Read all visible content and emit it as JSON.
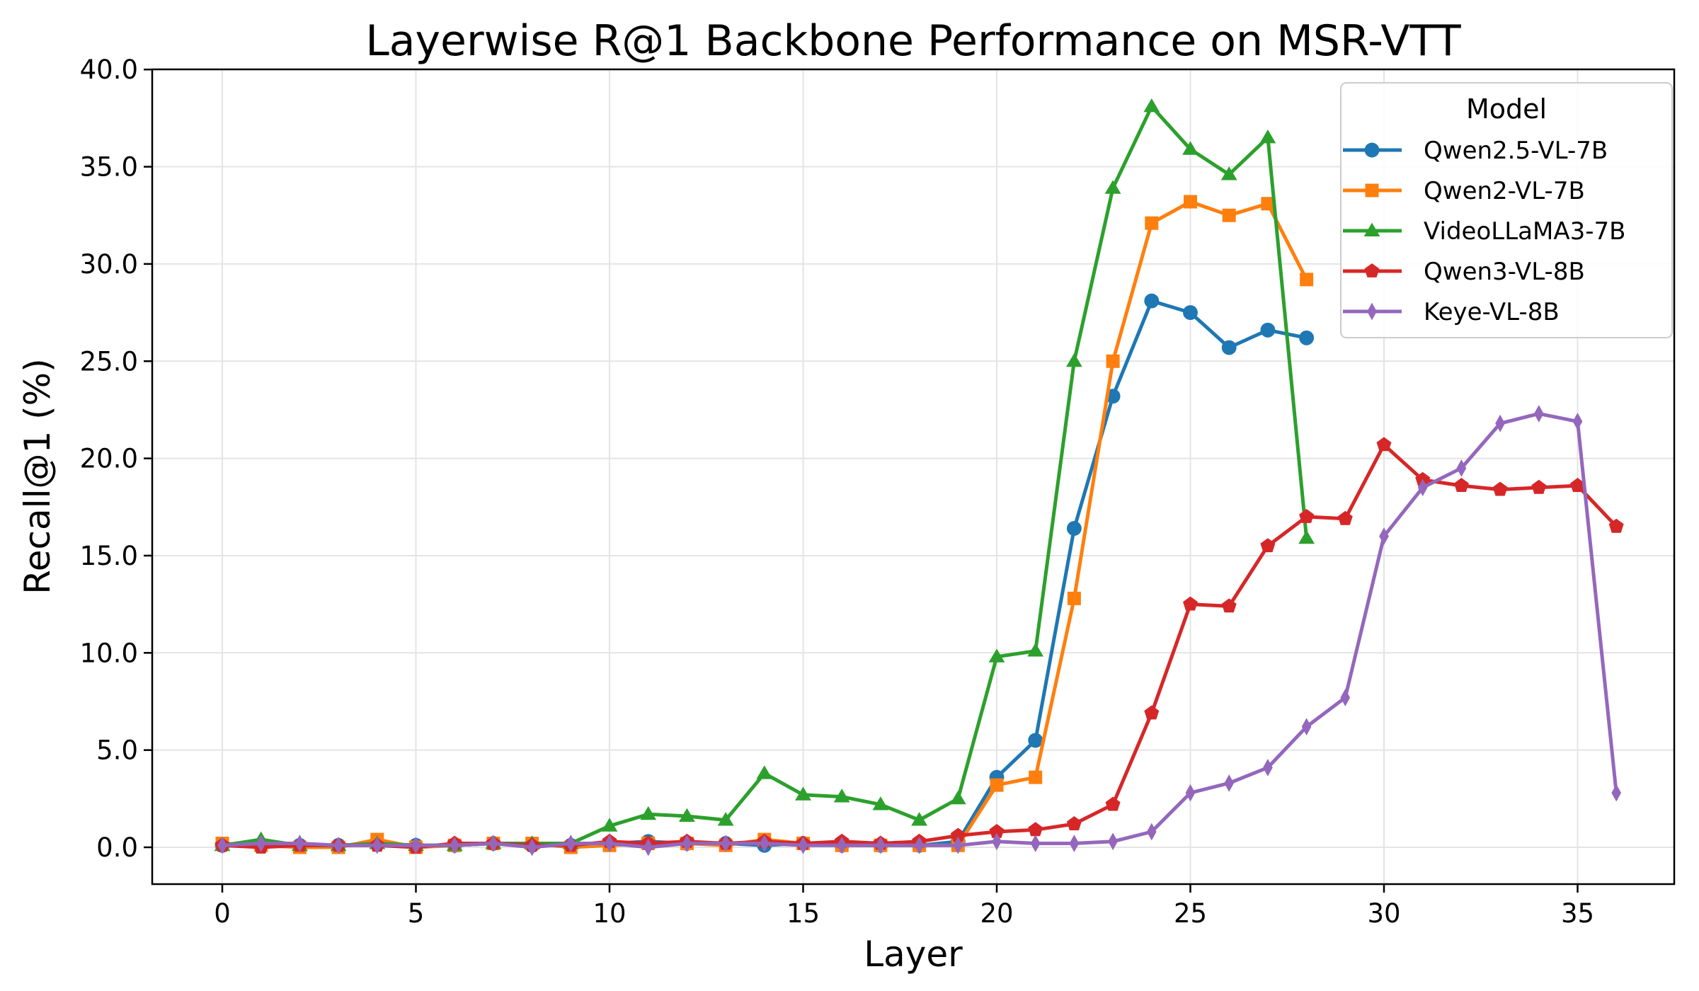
{
  "chart_data": {
    "type": "line",
    "title": "Layerwise R@1 Backbone Performance on MSR-VTT",
    "xlabel": "Layer",
    "ylabel": "Recall@1 (%)",
    "xlim": [
      -1.8,
      37.5
    ],
    "ylim": [
      -1.9,
      40.0
    ],
    "xticks": [
      0,
      5,
      10,
      15,
      20,
      25,
      30,
      35
    ],
    "yticks": [
      0.0,
      5.0,
      10.0,
      15.0,
      20.0,
      25.0,
      30.0,
      35.0,
      40.0
    ],
    "ytick_labels": [
      "0.0",
      "5.0",
      "10.0",
      "15.0",
      "20.0",
      "25.0",
      "30.0",
      "35.0",
      "40.0"
    ],
    "grid": true,
    "legend": {
      "title": "Model",
      "position": "upper right"
    },
    "series": [
      {
        "name": "Qwen2.5-VL-7B",
        "color": "#1f77b4",
        "marker": "circle",
        "x": [
          0,
          1,
          2,
          3,
          4,
          5,
          6,
          7,
          8,
          9,
          10,
          11,
          12,
          13,
          14,
          15,
          16,
          17,
          18,
          19,
          20,
          21,
          22,
          23,
          24,
          25,
          26,
          27,
          28
        ],
        "values": [
          0.1,
          0.1,
          0.1,
          0.1,
          0.2,
          0.1,
          0.1,
          0.2,
          0.1,
          0.1,
          0.2,
          0.3,
          0.2,
          0.2,
          0.1,
          0.2,
          0.1,
          0.1,
          0.1,
          0.3,
          3.6,
          5.5,
          16.4,
          23.2,
          28.1,
          27.5,
          25.7,
          26.6,
          26.2
        ]
      },
      {
        "name": "Qwen2-VL-7B",
        "color": "#ff7f0e",
        "marker": "square",
        "x": [
          0,
          1,
          2,
          3,
          4,
          5,
          6,
          7,
          8,
          9,
          10,
          11,
          12,
          13,
          14,
          15,
          16,
          17,
          18,
          19,
          20,
          21,
          22,
          23,
          24,
          25,
          26,
          27,
          28
        ],
        "values": [
          0.2,
          0.1,
          0.0,
          0.0,
          0.4,
          0.0,
          0.1,
          0.2,
          0.2,
          0.0,
          0.1,
          0.2,
          0.2,
          0.1,
          0.4,
          0.2,
          0.1,
          0.1,
          0.1,
          0.1,
          3.2,
          3.6,
          12.8,
          25.0,
          32.1,
          33.2,
          32.5,
          33.1,
          29.2
        ]
      },
      {
        "name": "VideoLLaMA3-7B",
        "color": "#2ca02c",
        "marker": "triangle",
        "x": [
          0,
          1,
          2,
          3,
          4,
          5,
          6,
          7,
          8,
          9,
          10,
          11,
          12,
          13,
          14,
          15,
          16,
          17,
          18,
          19,
          20,
          21,
          22,
          23,
          24,
          25,
          26,
          27,
          28
        ],
        "values": [
          0.1,
          0.4,
          0.1,
          0.1,
          0.2,
          0.1,
          0.1,
          0.2,
          0.2,
          0.2,
          1.1,
          1.7,
          1.6,
          1.4,
          3.8,
          2.7,
          2.6,
          2.2,
          1.4,
          2.5,
          9.8,
          10.1,
          25.0,
          33.9,
          38.1,
          35.9,
          34.6,
          36.5,
          15.9
        ]
      },
      {
        "name": "Qwen3-VL-8B",
        "color": "#d62728",
        "marker": "pentagon",
        "x": [
          0,
          1,
          2,
          3,
          4,
          5,
          6,
          7,
          8,
          9,
          10,
          11,
          12,
          13,
          14,
          15,
          16,
          17,
          18,
          19,
          20,
          21,
          22,
          23,
          24,
          25,
          26,
          27,
          28,
          29,
          30,
          31,
          32,
          33,
          34,
          35,
          36
        ],
        "values": [
          0.1,
          0.0,
          0.1,
          0.1,
          0.1,
          0.0,
          0.2,
          0.2,
          0.1,
          0.1,
          0.3,
          0.2,
          0.3,
          0.2,
          0.3,
          0.2,
          0.3,
          0.2,
          0.3,
          0.6,
          0.8,
          0.9,
          1.2,
          2.2,
          6.9,
          12.5,
          12.4,
          15.5,
          17.0,
          16.9,
          20.7,
          18.9,
          18.6,
          18.4,
          18.5,
          18.6,
          16.5
        ]
      },
      {
        "name": "Keye-VL-8B",
        "color": "#9467bd",
        "marker": "thin-diamond",
        "x": [
          0,
          1,
          2,
          3,
          4,
          5,
          6,
          7,
          8,
          9,
          10,
          11,
          12,
          13,
          14,
          15,
          16,
          17,
          18,
          19,
          20,
          21,
          22,
          23,
          24,
          25,
          26,
          27,
          28,
          29,
          30,
          31,
          32,
          33,
          34,
          35,
          36
        ],
        "values": [
          0.1,
          0.2,
          0.2,
          0.1,
          0.1,
          0.1,
          0.1,
          0.2,
          0.0,
          0.2,
          0.2,
          0.0,
          0.2,
          0.2,
          0.2,
          0.1,
          0.1,
          0.1,
          0.1,
          0.1,
          0.3,
          0.2,
          0.2,
          0.3,
          0.8,
          2.8,
          3.3,
          4.1,
          6.2,
          7.7,
          16.0,
          18.5,
          19.5,
          21.8,
          22.3,
          21.9,
          2.8
        ]
      }
    ]
  }
}
